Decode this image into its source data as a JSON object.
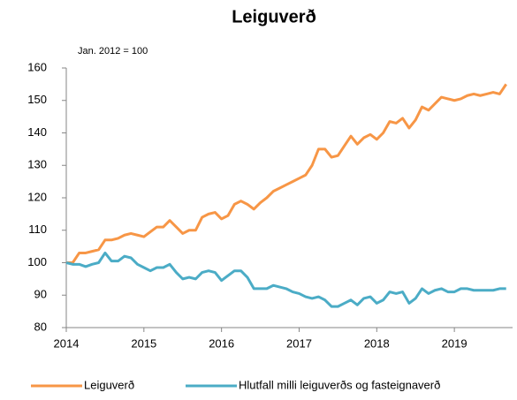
{
  "chart_data": {
    "type": "line",
    "title": "Leiguverð",
    "annotation": "Jan. 2012 = 100",
    "x": [
      2014,
      2014.083,
      2014.167,
      2014.25,
      2014.333,
      2014.417,
      2014.5,
      2014.583,
      2014.667,
      2014.75,
      2014.833,
      2014.917,
      2015,
      2015.083,
      2015.167,
      2015.25,
      2015.333,
      2015.417,
      2015.5,
      2015.583,
      2015.667,
      2015.75,
      2015.833,
      2015.917,
      2016,
      2016.083,
      2016.167,
      2016.25,
      2016.333,
      2016.417,
      2016.5,
      2016.583,
      2016.667,
      2016.75,
      2016.833,
      2016.917,
      2017,
      2017.083,
      2017.167,
      2017.25,
      2017.333,
      2017.417,
      2017.5,
      2017.583,
      2017.667,
      2017.75,
      2017.833,
      2017.917,
      2018,
      2018.083,
      2018.167,
      2018.25,
      2018.333,
      2018.417,
      2018.5,
      2018.583,
      2018.667,
      2018.75,
      2018.833,
      2018.917,
      2019,
      2019.083,
      2019.167,
      2019.25,
      2019.333,
      2019.417,
      2019.5,
      2019.583,
      2019.667
    ],
    "series": [
      {
        "name": "Leiguverð",
        "color": "#f79646",
        "values": [
          100,
          100,
          103,
          103,
          103.5,
          104,
          107,
          107,
          107.5,
          108.5,
          109,
          108.5,
          108,
          109.5,
          111,
          111,
          113,
          111,
          109,
          110,
          110,
          114,
          115,
          115.5,
          113.5,
          114.5,
          118,
          119,
          118,
          116.5,
          118.5,
          120,
          122,
          123,
          124,
          125,
          126,
          127,
          130,
          135,
          135,
          132.5,
          133,
          136,
          139,
          136.5,
          138.5,
          139.5,
          138,
          140,
          143.5,
          143,
          144.5,
          141.5,
          144,
          148,
          147,
          149,
          151,
          150.5,
          150,
          150.5,
          151.5,
          152,
          151.5,
          152,
          152.5,
          152,
          155
        ]
      },
      {
        "name": "Hlutfall milli leiguverðs og fasteignaverð",
        "color": "#4bacc6",
        "values": [
          100,
          99.5,
          99.5,
          98.8,
          99.5,
          100,
          103,
          100.5,
          100.5,
          102,
          101.5,
          99.5,
          98.5,
          97.5,
          98.5,
          98.5,
          99.5,
          97,
          95,
          95.5,
          95,
          97,
          97.5,
          97,
          94.5,
          96,
          97.5,
          97.5,
          95.5,
          92,
          92,
          92,
          93,
          92.5,
          92,
          91,
          90.5,
          89.5,
          89,
          89.5,
          88.5,
          86.5,
          86.5,
          87.5,
          88.5,
          87,
          89,
          89.5,
          87.5,
          88.5,
          91,
          90.5,
          91,
          87.5,
          89,
          92,
          90.5,
          91.5,
          92,
          91,
          91,
          92,
          92,
          91.5,
          91.5,
          91.5,
          91.5,
          92,
          92
        ]
      }
    ],
    "xlim": [
      2014,
      2019.75
    ],
    "xticks": [
      2014,
      2015,
      2016,
      2017,
      2018,
      2019
    ],
    "ylim": [
      80,
      160
    ],
    "yticks": [
      80,
      90,
      100,
      110,
      120,
      130,
      140,
      150,
      160
    ],
    "grid": false
  }
}
